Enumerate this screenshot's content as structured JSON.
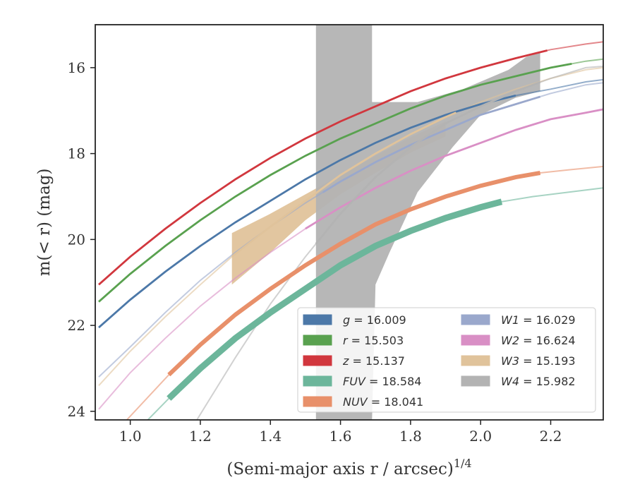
{
  "chart_data": {
    "type": "line",
    "xlabel": "(Semi-major axis r / arcsec)",
    "xlabel_sup": "1/4",
    "ylabel": "m(< r) (mag)",
    "xlim": [
      0.9,
      2.35
    ],
    "ylim": [
      24.2,
      15.0
    ],
    "y_inverted": true,
    "x_ticks": [
      "1.0",
      "1.2",
      "1.4",
      "1.6",
      "1.8",
      "2.0",
      "2.2"
    ],
    "y_ticks": [
      "16",
      "18",
      "20",
      "22",
      "24"
    ],
    "legend_position": "lower-right",
    "series": [
      {
        "name": "g",
        "legend": "g = 16.009",
        "color": "#4c78a8",
        "x": [
          0.91,
          1.0,
          1.1,
          1.2,
          1.3,
          1.4,
          1.5,
          1.6,
          1.7,
          1.8,
          1.9,
          2.0,
          2.1,
          2.2,
          2.3,
          2.35
        ],
        "y": [
          22.05,
          21.4,
          20.75,
          20.15,
          19.6,
          19.1,
          18.6,
          18.15,
          17.75,
          17.4,
          17.1,
          16.85,
          16.65,
          16.5,
          16.33,
          16.28
        ],
        "solid_from": 0.91,
        "solid_to": 2.1
      },
      {
        "name": "r",
        "legend": "r = 15.503",
        "color": "#59a14f",
        "x": [
          0.91,
          1.0,
          1.1,
          1.2,
          1.3,
          1.4,
          1.5,
          1.6,
          1.7,
          1.8,
          1.9,
          2.0,
          2.1,
          2.2,
          2.3,
          2.35
        ],
        "y": [
          21.45,
          20.8,
          20.15,
          19.55,
          19.0,
          18.5,
          18.05,
          17.65,
          17.3,
          16.95,
          16.65,
          16.4,
          16.2,
          16.0,
          15.85,
          15.8
        ],
        "solid_from": 0.91,
        "solid_to": 2.26
      },
      {
        "name": "z",
        "legend": "z = 15.137",
        "color": "#d1373e",
        "x": [
          0.91,
          1.0,
          1.1,
          1.2,
          1.3,
          1.4,
          1.5,
          1.6,
          1.7,
          1.8,
          1.9,
          2.0,
          2.1,
          2.2,
          2.3,
          2.35
        ],
        "y": [
          21.05,
          20.4,
          19.75,
          19.15,
          18.6,
          18.1,
          17.65,
          17.25,
          16.9,
          16.55,
          16.25,
          16.0,
          15.78,
          15.58,
          15.45,
          15.4
        ],
        "solid_from": 0.91,
        "solid_to": 2.19
      },
      {
        "name": "FUV",
        "legend": "FUV = 18.584",
        "color": "#6cb69b",
        "x": [
          1.05,
          1.11,
          1.2,
          1.3,
          1.4,
          1.5,
          1.6,
          1.7,
          1.8,
          1.9,
          2.0,
          2.06,
          2.15,
          2.25,
          2.35
        ],
        "y": [
          24.2,
          23.7,
          23.0,
          22.3,
          21.7,
          21.15,
          20.6,
          20.15,
          19.8,
          19.5,
          19.25,
          19.12,
          19.0,
          18.9,
          18.8
        ],
        "solid_from": 1.11,
        "solid_to": 2.06
      },
      {
        "name": "NUV",
        "legend": "NUV = 18.041",
        "color": "#e8906a",
        "x": [
          0.99,
          1.11,
          1.2,
          1.3,
          1.4,
          1.5,
          1.6,
          1.7,
          1.8,
          1.9,
          2.0,
          2.1,
          2.17,
          2.25,
          2.35
        ],
        "y": [
          24.2,
          23.15,
          22.45,
          21.75,
          21.15,
          20.6,
          20.1,
          19.65,
          19.3,
          19.0,
          18.75,
          18.55,
          18.45,
          18.38,
          18.3
        ],
        "solid_from": 1.11,
        "solid_to": 2.17
      },
      {
        "name": "W1",
        "legend": "W1 = 16.029",
        "color": "#9aa8cc",
        "x": [
          0.91,
          1.0,
          1.1,
          1.2,
          1.3,
          1.4,
          1.5,
          1.6,
          1.7,
          1.8,
          1.9,
          2.0,
          2.1,
          2.2,
          2.3,
          2.35
        ],
        "y": [
          23.2,
          22.5,
          21.7,
          20.95,
          20.3,
          19.7,
          19.15,
          18.65,
          18.2,
          17.8,
          17.45,
          17.1,
          16.85,
          16.6,
          16.4,
          16.35
        ],
        "solid_from": 1.55,
        "solid_to": 2.17
      },
      {
        "name": "W2",
        "legend": "W2 = 16.624",
        "color": "#d98fc5",
        "x": [
          0.91,
          1.0,
          1.1,
          1.2,
          1.3,
          1.4,
          1.5,
          1.6,
          1.7,
          1.8,
          1.9,
          2.0,
          2.1,
          2.2,
          2.3,
          2.35
        ],
        "y": [
          23.95,
          23.1,
          22.3,
          21.55,
          20.9,
          20.3,
          19.75,
          19.25,
          18.8,
          18.4,
          18.05,
          17.75,
          17.45,
          17.2,
          17.05,
          16.97
        ],
        "solid_from": 1.5,
        "solid_to": 2.35
      },
      {
        "name": "W3",
        "legend": "W3 = 15.193",
        "color": "#e0c39b",
        "x": [
          0.91,
          1.0,
          1.1,
          1.2,
          1.29,
          1.4,
          1.5,
          1.6,
          1.7,
          1.8,
          1.9,
          2.0,
          2.1,
          2.2,
          2.3,
          2.35
        ],
        "y": [
          23.4,
          22.6,
          21.8,
          21.05,
          20.4,
          19.7,
          19.1,
          18.5,
          18.0,
          17.55,
          17.15,
          16.8,
          16.5,
          16.25,
          16.05,
          16.0
        ],
        "solid_from": 1.29,
        "solid_to": 1.93,
        "band_upper": [
          19.85,
          19.4,
          18.95,
          18.5,
          18.05,
          17.62,
          17.25
        ],
        "band_lower": [
          21.05,
          20.3,
          19.55,
          18.95,
          18.45,
          17.98,
          17.6
        ],
        "band_x": [
          1.29,
          1.4,
          1.5,
          1.6,
          1.7,
          1.8,
          1.9
        ]
      },
      {
        "name": "W4",
        "legend": "W4 = 15.982",
        "color": "#b3b3b3",
        "x": [
          1.19,
          1.3,
          1.4,
          1.5,
          1.6,
          1.7,
          1.8,
          1.9,
          2.0,
          2.1,
          2.2,
          2.3,
          2.35
        ],
        "y": [
          24.2,
          22.75,
          21.5,
          20.4,
          19.4,
          18.55,
          17.85,
          17.3,
          16.9,
          16.55,
          16.25,
          16.0,
          15.97
        ],
        "solid_from": 1.53,
        "solid_to": 2.17,
        "band_polygon": [
          [
            1.53,
            15.0
          ],
          [
            1.69,
            15.0
          ],
          [
            1.69,
            16.8
          ],
          [
            1.82,
            16.8
          ],
          [
            1.95,
            16.5
          ],
          [
            2.08,
            16.05
          ],
          [
            2.13,
            15.75
          ],
          [
            2.17,
            15.65
          ],
          [
            2.17,
            16.55
          ],
          [
            2.1,
            16.7
          ],
          [
            2.0,
            17.1
          ],
          [
            1.92,
            17.85
          ],
          [
            1.82,
            18.9
          ],
          [
            1.78,
            19.6
          ],
          [
            1.74,
            20.3
          ],
          [
            1.7,
            21.05
          ],
          [
            1.69,
            24.2
          ],
          [
            1.53,
            24.2
          ]
        ]
      }
    ]
  }
}
